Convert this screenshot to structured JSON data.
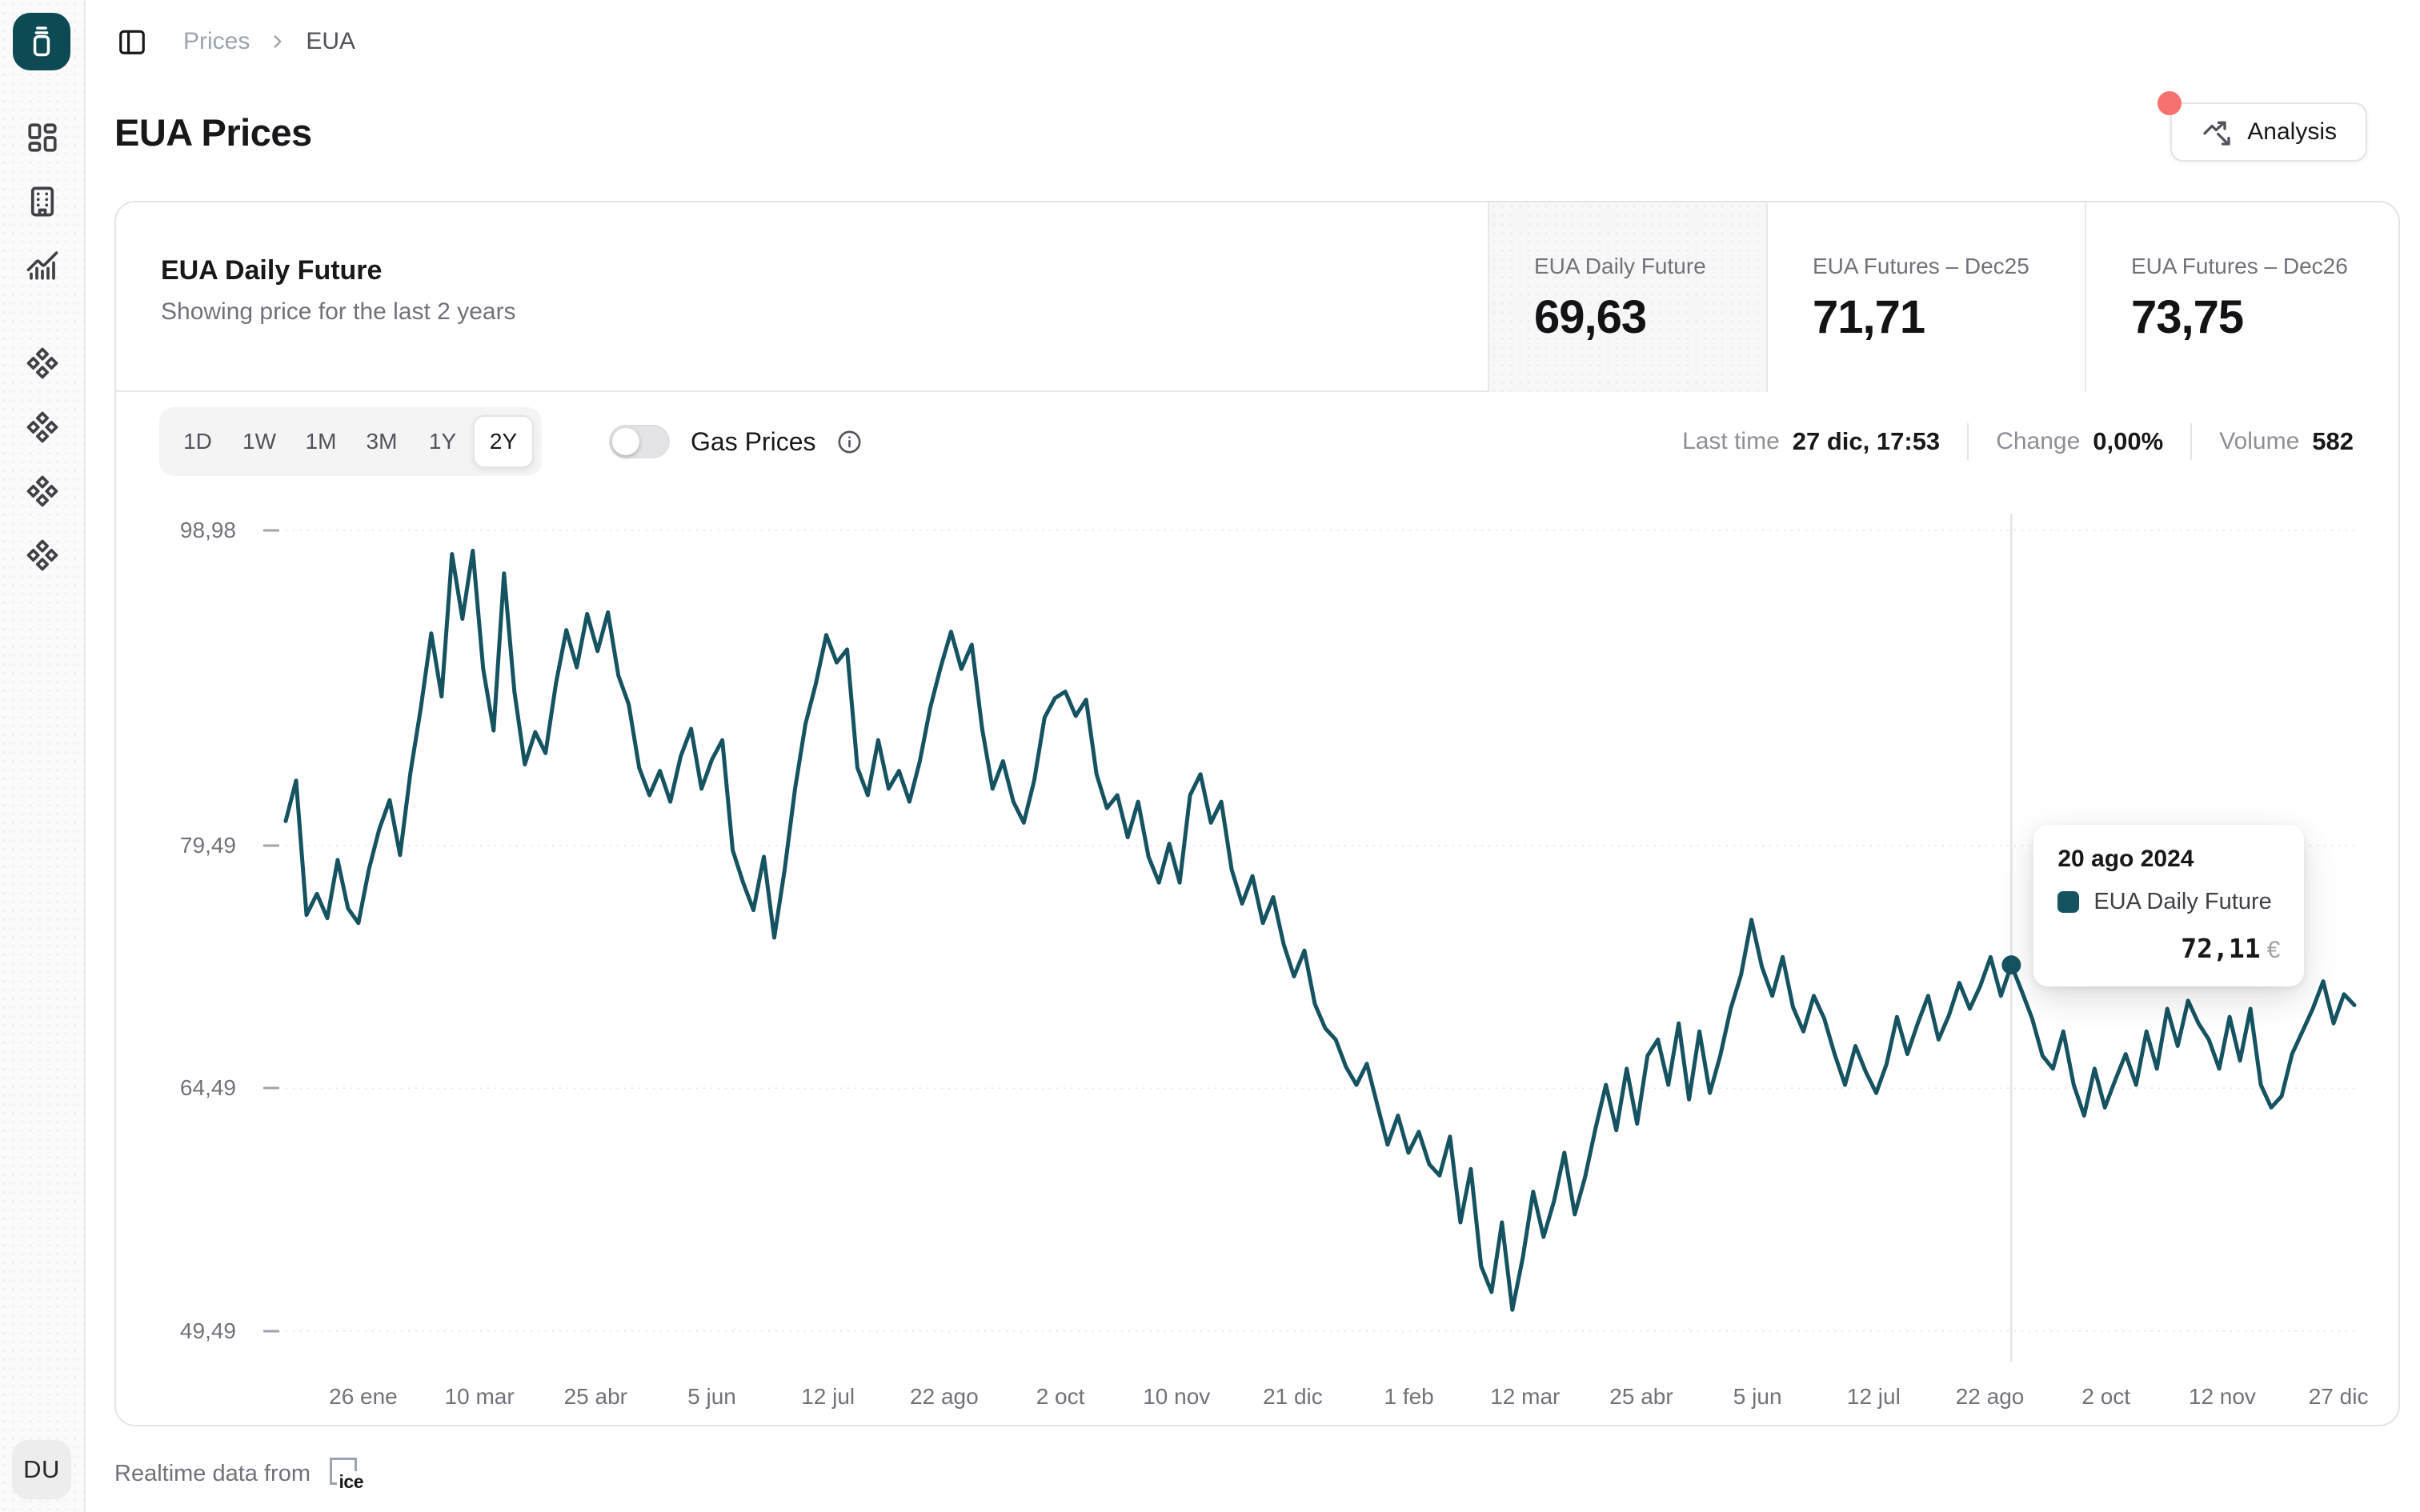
{
  "header": {
    "breadcrumb": [
      "Prices",
      "EUA"
    ],
    "title": "EUA Prices",
    "analysis_label": "Analysis"
  },
  "sidebar": {
    "icons": [
      "dashboard-icon",
      "building-icon",
      "chart-icon",
      "component-icon",
      "component-icon",
      "component-icon",
      "component-icon"
    ],
    "avatar_initials": "DU"
  },
  "card": {
    "title": "EUA Daily Future",
    "subtitle": "Showing price for the last 2 years",
    "tiles": [
      {
        "label": "EUA Daily Future",
        "value": "69,63",
        "selected": true
      },
      {
        "label": "EUA Futures – Dec25",
        "value": "71,71",
        "selected": false
      },
      {
        "label": "EUA Futures – Dec26",
        "value": "73,75",
        "selected": false
      }
    ],
    "ranges": [
      "1D",
      "1W",
      "1M",
      "3M",
      "1Y",
      "2Y"
    ],
    "selected_range": "2Y",
    "gas_toggle": {
      "label": "Gas Prices",
      "on": false
    },
    "stats": [
      {
        "label": "Last time",
        "value": "27 dic, 17:53"
      },
      {
        "label": "Change",
        "value": "0,00%"
      },
      {
        "label": "Volume",
        "value": "582"
      }
    ]
  },
  "tooltip": {
    "date": "20 ago 2024",
    "series": "EUA Daily Future",
    "value": "72,11",
    "currency": "€"
  },
  "footer": {
    "text": "Realtime data from",
    "provider": "ice"
  },
  "colors": {
    "line": "#155361",
    "accent_teal": "#0d4a53",
    "notification_red": "#f87171",
    "grid": "#e4e4e7",
    "crosshair": "#e4e4e7"
  },
  "chart_data": {
    "type": "line",
    "title": "EUA Daily Future",
    "unit": "EUR",
    "legend_position": "tooltip-only",
    "grid": "horizontal-dotted",
    "ylim": [
      47.6,
      100.0
    ],
    "y_ticks": [
      98.98,
      79.49,
      64.49,
      49.49
    ],
    "y_tick_labels": [
      "98,98",
      "79,49",
      "64,49",
      "49,49"
    ],
    "x_tick_labels": [
      "26 ene",
      "10 mar",
      "25 abr",
      "5 jun",
      "12 jul",
      "22 ago",
      "2 oct",
      "10 nov",
      "21 dic",
      "1 feb",
      "12 mar",
      "25 abr",
      "5 jun",
      "12 jul",
      "22 ago",
      "2 oct",
      "12 nov",
      "27 dic"
    ],
    "x_range_note": "dec 2022 - 27 dic 2024, ~weekly samples",
    "hover_marker": {
      "index": 166,
      "date": "20 ago 2024",
      "value": 72.11
    },
    "series": [
      {
        "name": "EUA Daily Future",
        "values": [
          81.0,
          83.5,
          75.2,
          76.5,
          75.0,
          78.6,
          75.6,
          74.7,
          78.0,
          80.5,
          82.3,
          78.9,
          84.0,
          88.0,
          92.6,
          88.7,
          97.5,
          93.5,
          97.7,
          90.4,
          86.6,
          96.3,
          89.0,
          84.5,
          86.5,
          85.2,
          89.5,
          92.8,
          90.5,
          93.8,
          91.5,
          93.9,
          90.0,
          88.2,
          84.3,
          82.6,
          84.1,
          82.2,
          85.0,
          86.7,
          83.0,
          84.8,
          86.0,
          79.2,
          77.2,
          75.5,
          78.8,
          73.8,
          78.0,
          83.0,
          87.0,
          89.5,
          92.5,
          90.8,
          91.6,
          84.3,
          82.6,
          86.0,
          83.0,
          84.1,
          82.2,
          84.7,
          88.0,
          90.5,
          92.7,
          90.4,
          91.9,
          86.7,
          83.0,
          84.7,
          82.2,
          80.9,
          83.5,
          87.4,
          88.6,
          89.0,
          87.5,
          88.5,
          83.9,
          81.8,
          82.6,
          80.0,
          82.2,
          78.8,
          77.2,
          79.6,
          77.2,
          82.6,
          83.9,
          80.9,
          82.2,
          78.0,
          75.9,
          77.6,
          74.7,
          76.3,
          73.4,
          71.4,
          73.0,
          69.7,
          68.2,
          67.5,
          65.8,
          64.7,
          66.0,
          63.5,
          61.0,
          62.8,
          60.5,
          61.8,
          59.8,
          59.1,
          61.5,
          56.2,
          59.5,
          53.5,
          51.9,
          56.2,
          50.8,
          54.0,
          58.1,
          55.3,
          57.5,
          60.5,
          56.7,
          59.0,
          62.0,
          64.7,
          61.9,
          65.7,
          62.3,
          66.5,
          67.5,
          64.7,
          68.5,
          63.8,
          68.0,
          64.2,
          66.5,
          69.4,
          71.5,
          74.9,
          72.0,
          70.2,
          72.6,
          69.5,
          68.0,
          70.2,
          68.8,
          66.6,
          64.7,
          67.1,
          65.5,
          64.2,
          66.0,
          68.9,
          66.6,
          68.5,
          70.2,
          67.5,
          69.0,
          71.0,
          69.4,
          70.8,
          72.6,
          70.2,
          72.11,
          70.5,
          68.8,
          66.5,
          65.7,
          68.0,
          64.7,
          62.8,
          65.7,
          63.3,
          65.0,
          66.6,
          64.7,
          68.0,
          65.7,
          69.4,
          67.1,
          69.9,
          68.5,
          67.5,
          65.7,
          68.9,
          66.2,
          69.4,
          64.7,
          63.3,
          64.0,
          66.6,
          68.0,
          69.4,
          71.1,
          68.5,
          70.3,
          69.63
        ]
      }
    ]
  }
}
